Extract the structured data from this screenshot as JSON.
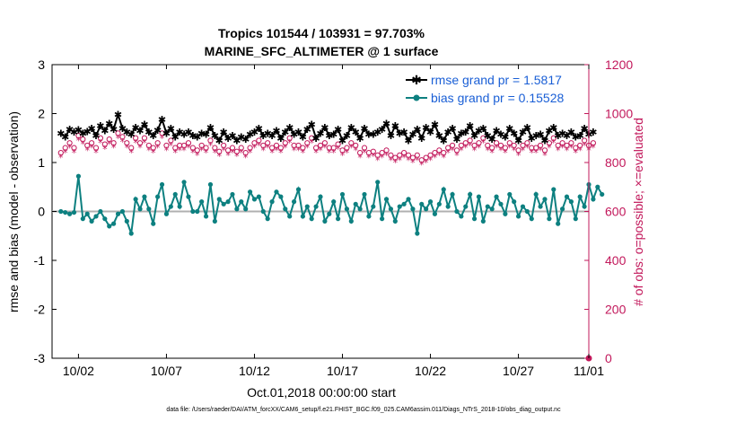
{
  "chart_data": {
    "type": "line",
    "title": "Tropics 101544 / 103931 = 97.703%",
    "subtitle": "MARINE_SFC_ALTIMETER @ 1 surface",
    "xlabel": "Oct.01,2018 00:00:00 start",
    "ylabel": "rmse and bias (model - observation)",
    "y2label": "# of obs: o=possible; ×=evaluated",
    "footer": "data file: /Users/raeder/DAI/ATM_forcXX/CAM6_setup/f.e21.FHIST_BGC.f09_025.CAM6assim.011/Diags_NTrS_2018-10/obs_diag_output.nc",
    "xlim": [
      0.5,
      31
    ],
    "ylim": [
      -3,
      3
    ],
    "y2lim": [
      0,
      1200
    ],
    "x_ticks": [
      {
        "x": 2,
        "label": "10/02"
      },
      {
        "x": 7,
        "label": "10/07"
      },
      {
        "x": 12,
        "label": "10/12"
      },
      {
        "x": 17,
        "label": "10/17"
      },
      {
        "x": 22,
        "label": "10/22"
      },
      {
        "x": 27,
        "label": "10/27"
      },
      {
        "x": 31,
        "label": "11/01"
      }
    ],
    "y_ticks": [
      "-3",
      "-2",
      "-1",
      "0",
      "1",
      "2",
      "3"
    ],
    "y2_ticks": [
      "0",
      "200",
      "400",
      "600",
      "800",
      "1000",
      "1200"
    ],
    "legend": {
      "placement": "top-right",
      "entries": [
        "rmse grand pr = 1.5817",
        "bias grand pr = 0.15528"
      ]
    },
    "x_start": 1.0,
    "x_step": 0.25,
    "series": [
      {
        "name": "rmse grand pr = 1.5817",
        "color": "#000000",
        "marker": "star",
        "axis": "left",
        "values": [
          1.6,
          1.52,
          1.68,
          1.62,
          1.67,
          1.6,
          1.63,
          1.7,
          1.55,
          1.75,
          1.65,
          1.8,
          1.68,
          1.98,
          1.7,
          1.62,
          1.58,
          1.72,
          1.65,
          1.78,
          1.62,
          1.55,
          1.66,
          1.88,
          1.6,
          1.7,
          1.52,
          1.62,
          1.58,
          1.62,
          1.55,
          1.52,
          1.6,
          1.58,
          1.72,
          1.55,
          1.45,
          1.62,
          1.5,
          1.55,
          1.45,
          1.52,
          1.48,
          1.58,
          1.62,
          1.7,
          1.55,
          1.6,
          1.55,
          1.65,
          1.5,
          1.62,
          1.72,
          1.58,
          1.62,
          1.52,
          1.68,
          1.78,
          1.5,
          1.6,
          1.72,
          1.55,
          1.58,
          1.68,
          1.45,
          1.55,
          1.72,
          1.62,
          1.5,
          1.7,
          1.58,
          1.58,
          1.62,
          1.68,
          1.8,
          1.55,
          1.75,
          1.6,
          1.62,
          1.45,
          1.58,
          1.68,
          1.5,
          1.72,
          1.62,
          1.78,
          1.55,
          1.45,
          1.62,
          1.7,
          1.48,
          1.6,
          1.62,
          1.75,
          1.55,
          1.65,
          1.7,
          1.55,
          1.48,
          1.65,
          1.58,
          1.52,
          1.7,
          1.6,
          1.45,
          1.62,
          1.72,
          1.5,
          1.55,
          1.58,
          1.45,
          1.65,
          1.72,
          1.55,
          1.6,
          1.55,
          1.62,
          1.52,
          1.55,
          1.7,
          1.58,
          1.62
        ]
      },
      {
        "name": "bias grand pr = 0.15528",
        "color": "#0d8080",
        "marker": "circle",
        "axis": "left",
        "values": [
          0.0,
          -0.02,
          -0.05,
          -0.02,
          0.72,
          -0.15,
          -0.05,
          -0.2,
          -0.1,
          0.0,
          -0.15,
          -0.3,
          -0.25,
          -0.05,
          0.0,
          -0.2,
          -0.45,
          0.25,
          0.05,
          0.3,
          0.05,
          -0.25,
          0.3,
          0.55,
          -0.05,
          0.1,
          0.35,
          0.1,
          0.6,
          0.3,
          0.0,
          0.0,
          0.2,
          -0.1,
          0.55,
          -0.2,
          0.25,
          0.15,
          0.2,
          0.35,
          0.05,
          0.2,
          0.05,
          0.4,
          0.25,
          0.3,
          0.0,
          -0.15,
          0.2,
          0.4,
          0.3,
          0.05,
          -0.1,
          0.2,
          0.45,
          -0.1,
          0.1,
          -0.15,
          0.1,
          0.3,
          -0.2,
          -0.05,
          0.2,
          -0.15,
          0.35,
          0.05,
          -0.2,
          0.15,
          0.05,
          0.35,
          -0.1,
          0.1,
          0.6,
          -0.15,
          0.25,
          0.05,
          -0.2,
          0.1,
          0.15,
          0.25,
          0.05,
          -0.45,
          0.15,
          0.05,
          0.2,
          -0.05,
          0.15,
          0.45,
          0.1,
          0.35,
          0.0,
          -0.1,
          0.1,
          0.35,
          -0.15,
          0.3,
          -0.2,
          0.1,
          0.05,
          0.3,
          0.15,
          -0.05,
          0.35,
          0.2,
          -0.1,
          0.1,
          0.0,
          -0.15,
          0.35,
          0.1,
          0.25,
          -0.15,
          0.45,
          -0.25,
          0.05,
          0.3,
          0.2,
          -0.15,
          0.3,
          0.1,
          0.55,
          0.25,
          0.5,
          0.35
        ]
      }
    ],
    "obs_possible": {
      "color": "#c2185b",
      "marker": "o",
      "axis": "right",
      "values": [
        840,
        860,
        880,
        860,
        910,
        895,
        870,
        880,
        860,
        900,
        875,
        895,
        880,
        920,
        905,
        880,
        860,
        900,
        880,
        900,
        870,
        860,
        880,
        920,
        870,
        890,
        860,
        870,
        870,
        880,
        860,
        850,
        870,
        860,
        890,
        860,
        845,
        870,
        850,
        860,
        845,
        860,
        840,
        860,
        880,
        890,
        870,
        880,
        860,
        870,
        860,
        880,
        900,
        870,
        870,
        860,
        880,
        900,
        860,
        870,
        880,
        860,
        860,
        875,
        850,
        860,
        880,
        870,
        840,
        860,
        840,
        845,
        830,
        840,
        850,
        830,
        820,
        830,
        840,
        830,
        820,
        830,
        810,
        820,
        830,
        840,
        850,
        840,
        860,
        870,
        850,
        870,
        880,
        890,
        870,
        880,
        900,
        870,
        860,
        880,
        870,
        860,
        880,
        870,
        850,
        870,
        880,
        860,
        860,
        870,
        850,
        880,
        900,
        870,
        880,
        870,
        880,
        860,
        870,
        890,
        870,
        880
      ]
    },
    "obs_evaluated": {
      "color": "#c2185b",
      "marker": "*",
      "axis": "right",
      "values": [
        820,
        840,
        860,
        840,
        890,
        875,
        850,
        860,
        840,
        880,
        855,
        875,
        860,
        900,
        885,
        860,
        840,
        880,
        860,
        880,
        850,
        840,
        860,
        900,
        850,
        870,
        840,
        850,
        850,
        860,
        840,
        830,
        850,
        840,
        870,
        840,
        825,
        850,
        830,
        840,
        825,
        840,
        820,
        840,
        860,
        870,
        850,
        860,
        840,
        850,
        840,
        860,
        880,
        850,
        850,
        840,
        860,
        880,
        840,
        850,
        860,
        840,
        840,
        855,
        830,
        840,
        860,
        850,
        820,
        840,
        820,
        825,
        810,
        820,
        830,
        810,
        800,
        810,
        820,
        810,
        800,
        810,
        790,
        800,
        810,
        820,
        830,
        820,
        840,
        850,
        830,
        850,
        860,
        870,
        850,
        860,
        880,
        850,
        840,
        860,
        850,
        840,
        860,
        850,
        830,
        850,
        860,
        840,
        840,
        850,
        830,
        860,
        880,
        850,
        860,
        850,
        860,
        840,
        850,
        870,
        850,
        860
      ]
    }
  }
}
